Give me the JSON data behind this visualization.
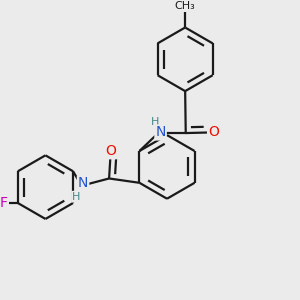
{
  "bg_color": "#ebebeb",
  "bond_color": "#1a1a1a",
  "lw": 1.6,
  "atom_colors": {
    "N": "#2255cc",
    "O": "#ee1100",
    "F": "#cc00bb",
    "H": "#448888"
  },
  "fs": 10,
  "fs_small": 8,
  "r": 0.11,
  "xlim": [
    0,
    1
  ],
  "ylim": [
    0,
    1
  ]
}
